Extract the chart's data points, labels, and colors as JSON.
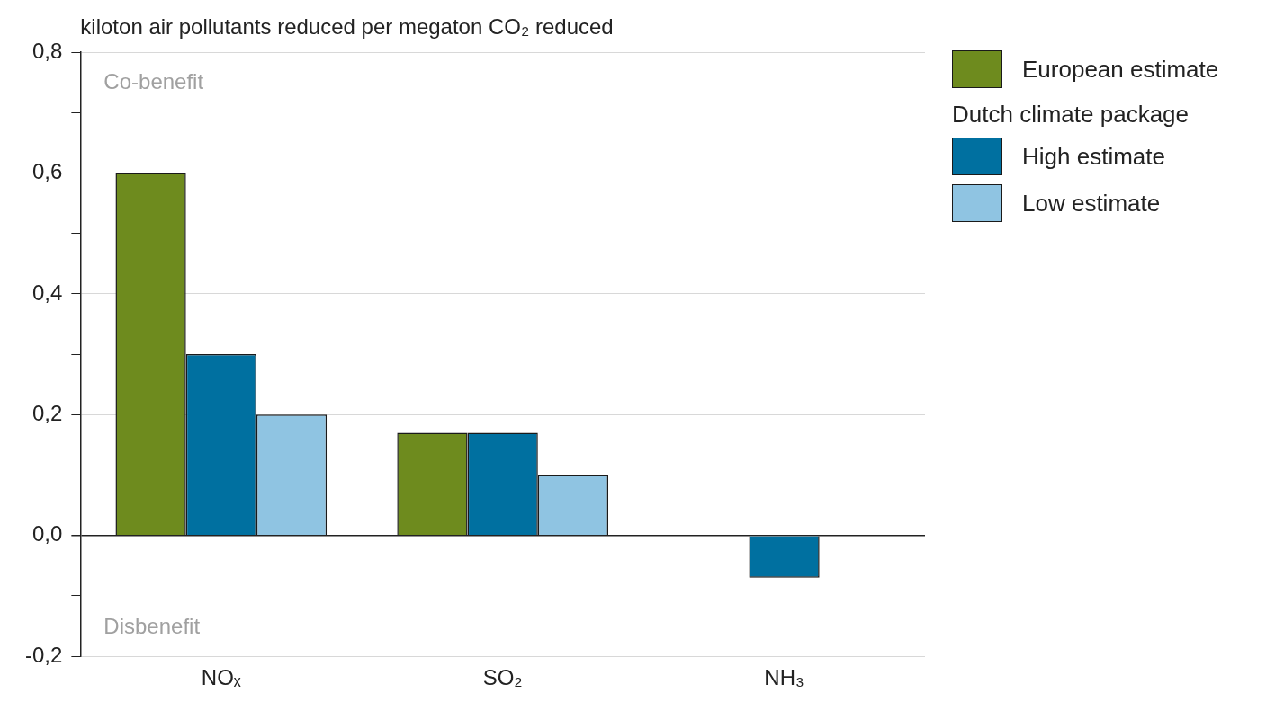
{
  "chart_data": {
    "type": "bar",
    "title": "kiloton air pollutants reduced per megaton CO₂ reduced",
    "categories": [
      "NOₓ",
      "SO₂",
      "NH₃"
    ],
    "series": [
      {
        "name": "European estimate",
        "color": "#6e8b1e",
        "values": [
          0.6,
          0.17,
          null
        ]
      },
      {
        "name": "High estimate",
        "color": "#0070a0",
        "values": [
          0.3,
          0.17,
          -0.07
        ]
      },
      {
        "name": "Low estimate",
        "color": "#8fc4e2",
        "values": [
          0.2,
          0.1,
          null
        ]
      }
    ],
    "legend_title": "Dutch climate package",
    "ylim": [
      -0.2,
      0.8
    ],
    "yticks": [
      {
        "value": -0.2,
        "label": "-0,2"
      },
      {
        "value": -0.1,
        "label": null
      },
      {
        "value": 0,
        "label": "0,0"
      },
      {
        "value": 0.1,
        "label": null
      },
      {
        "value": 0.2,
        "label": "0,2"
      },
      {
        "value": 0.3,
        "label": null
      },
      {
        "value": 0.4,
        "label": "0,4"
      },
      {
        "value": 0.5,
        "label": null
      },
      {
        "value": 0.6,
        "label": "0,6"
      },
      {
        "value": 0.7,
        "label": null
      },
      {
        "value": 0.8,
        "label": "0,8"
      }
    ],
    "annotations": [
      "Co-benefit",
      "Disbenefit"
    ],
    "grid": "y",
    "legend": "right"
  }
}
